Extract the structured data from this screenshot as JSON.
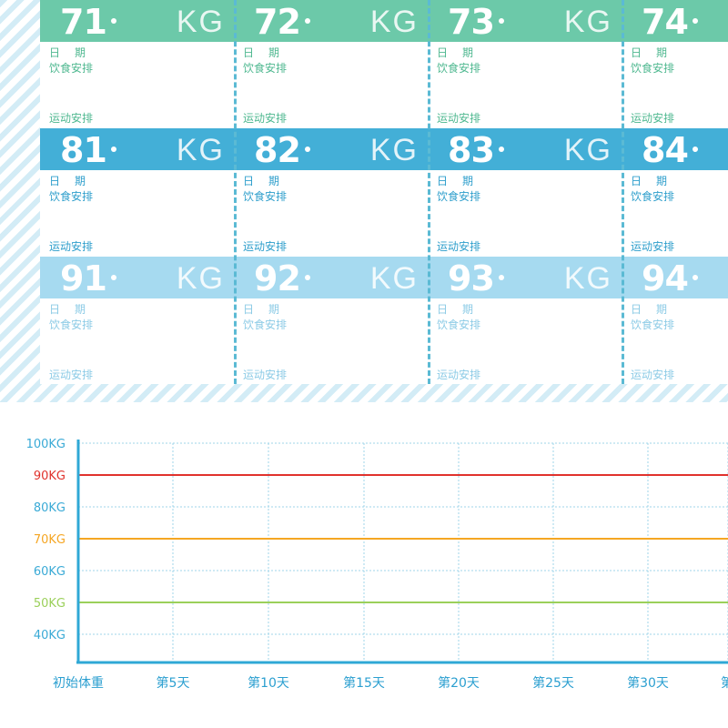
{
  "cards": {
    "rows": [
      {
        "key": "g",
        "cells": [
          {
            "num": "71",
            "unit": "KG",
            "date": "日期",
            "diet": "饮食安排",
            "exercise": "运动安排"
          },
          {
            "num": "72",
            "unit": "KG",
            "date": "日期",
            "diet": "饮食安排",
            "exercise": "运动安排"
          },
          {
            "num": "73",
            "unit": "KG",
            "date": "日期",
            "diet": "饮食安排",
            "exercise": "运动安排"
          },
          {
            "num": "74",
            "unit": "",
            "date": "日期",
            "diet": "饮食安排",
            "exercise": "运动安排"
          }
        ]
      },
      {
        "key": "m",
        "cells": [
          {
            "num": "81",
            "unit": "KG",
            "date": "日期",
            "diet": "饮食安排",
            "exercise": "运动安排"
          },
          {
            "num": "82",
            "unit": "KG",
            "date": "日期",
            "diet": "饮食安排",
            "exercise": "运动安排"
          },
          {
            "num": "83",
            "unit": "KG",
            "date": "日期",
            "diet": "饮食安排",
            "exercise": "运动安排"
          },
          {
            "num": "84",
            "unit": "",
            "date": "日期",
            "diet": "饮食安排",
            "exercise": "运动安排"
          }
        ]
      },
      {
        "key": "l",
        "cells": [
          {
            "num": "91",
            "unit": "KG",
            "date": "日期",
            "diet": "饮食安排",
            "exercise": "运动安排"
          },
          {
            "num": "92",
            "unit": "KG",
            "date": "日期",
            "diet": "饮食安排",
            "exercise": "运动安排"
          },
          {
            "num": "93",
            "unit": "KG",
            "date": "日期",
            "diet": "饮食安排",
            "exercise": "运动安排"
          },
          {
            "num": "94",
            "unit": "",
            "date": "日期",
            "diet": "饮食安排",
            "exercise": "运动安排"
          }
        ]
      }
    ]
  },
  "colors": {
    "band_green": "#6cc9a9",
    "band_mid_blue": "#43afd7",
    "band_light_blue": "#a6daf0",
    "axis": "#2fa8d6",
    "line_90": "#e0322c",
    "line_70": "#f5a623",
    "line_50": "#9bd05a"
  },
  "chart": {
    "y_ticks": [
      {
        "label": "100KG",
        "value": 100,
        "color": "#3aaad6"
      },
      {
        "label": "90KG",
        "value": 90,
        "color": "#e0322c"
      },
      {
        "label": "80KG",
        "value": 80,
        "color": "#3aaad6"
      },
      {
        "label": "70KG",
        "value": 70,
        "color": "#f5a623"
      },
      {
        "label": "60KG",
        "value": 60,
        "color": "#3aaad6"
      },
      {
        "label": "50KG",
        "value": 50,
        "color": "#9bd05a"
      },
      {
        "label": "40KG",
        "value": 40,
        "color": "#3aaad6"
      }
    ],
    "x_ticks": [
      "初始体重",
      "第5天",
      "第10天",
      "第15天",
      "第20天",
      "第25天",
      "第30天",
      "第"
    ],
    "ref_lines": [
      {
        "value": 90,
        "color": "#e0322c"
      },
      {
        "value": 70,
        "color": "#f5a623"
      },
      {
        "value": 50,
        "color": "#9bd05a"
      }
    ]
  }
}
